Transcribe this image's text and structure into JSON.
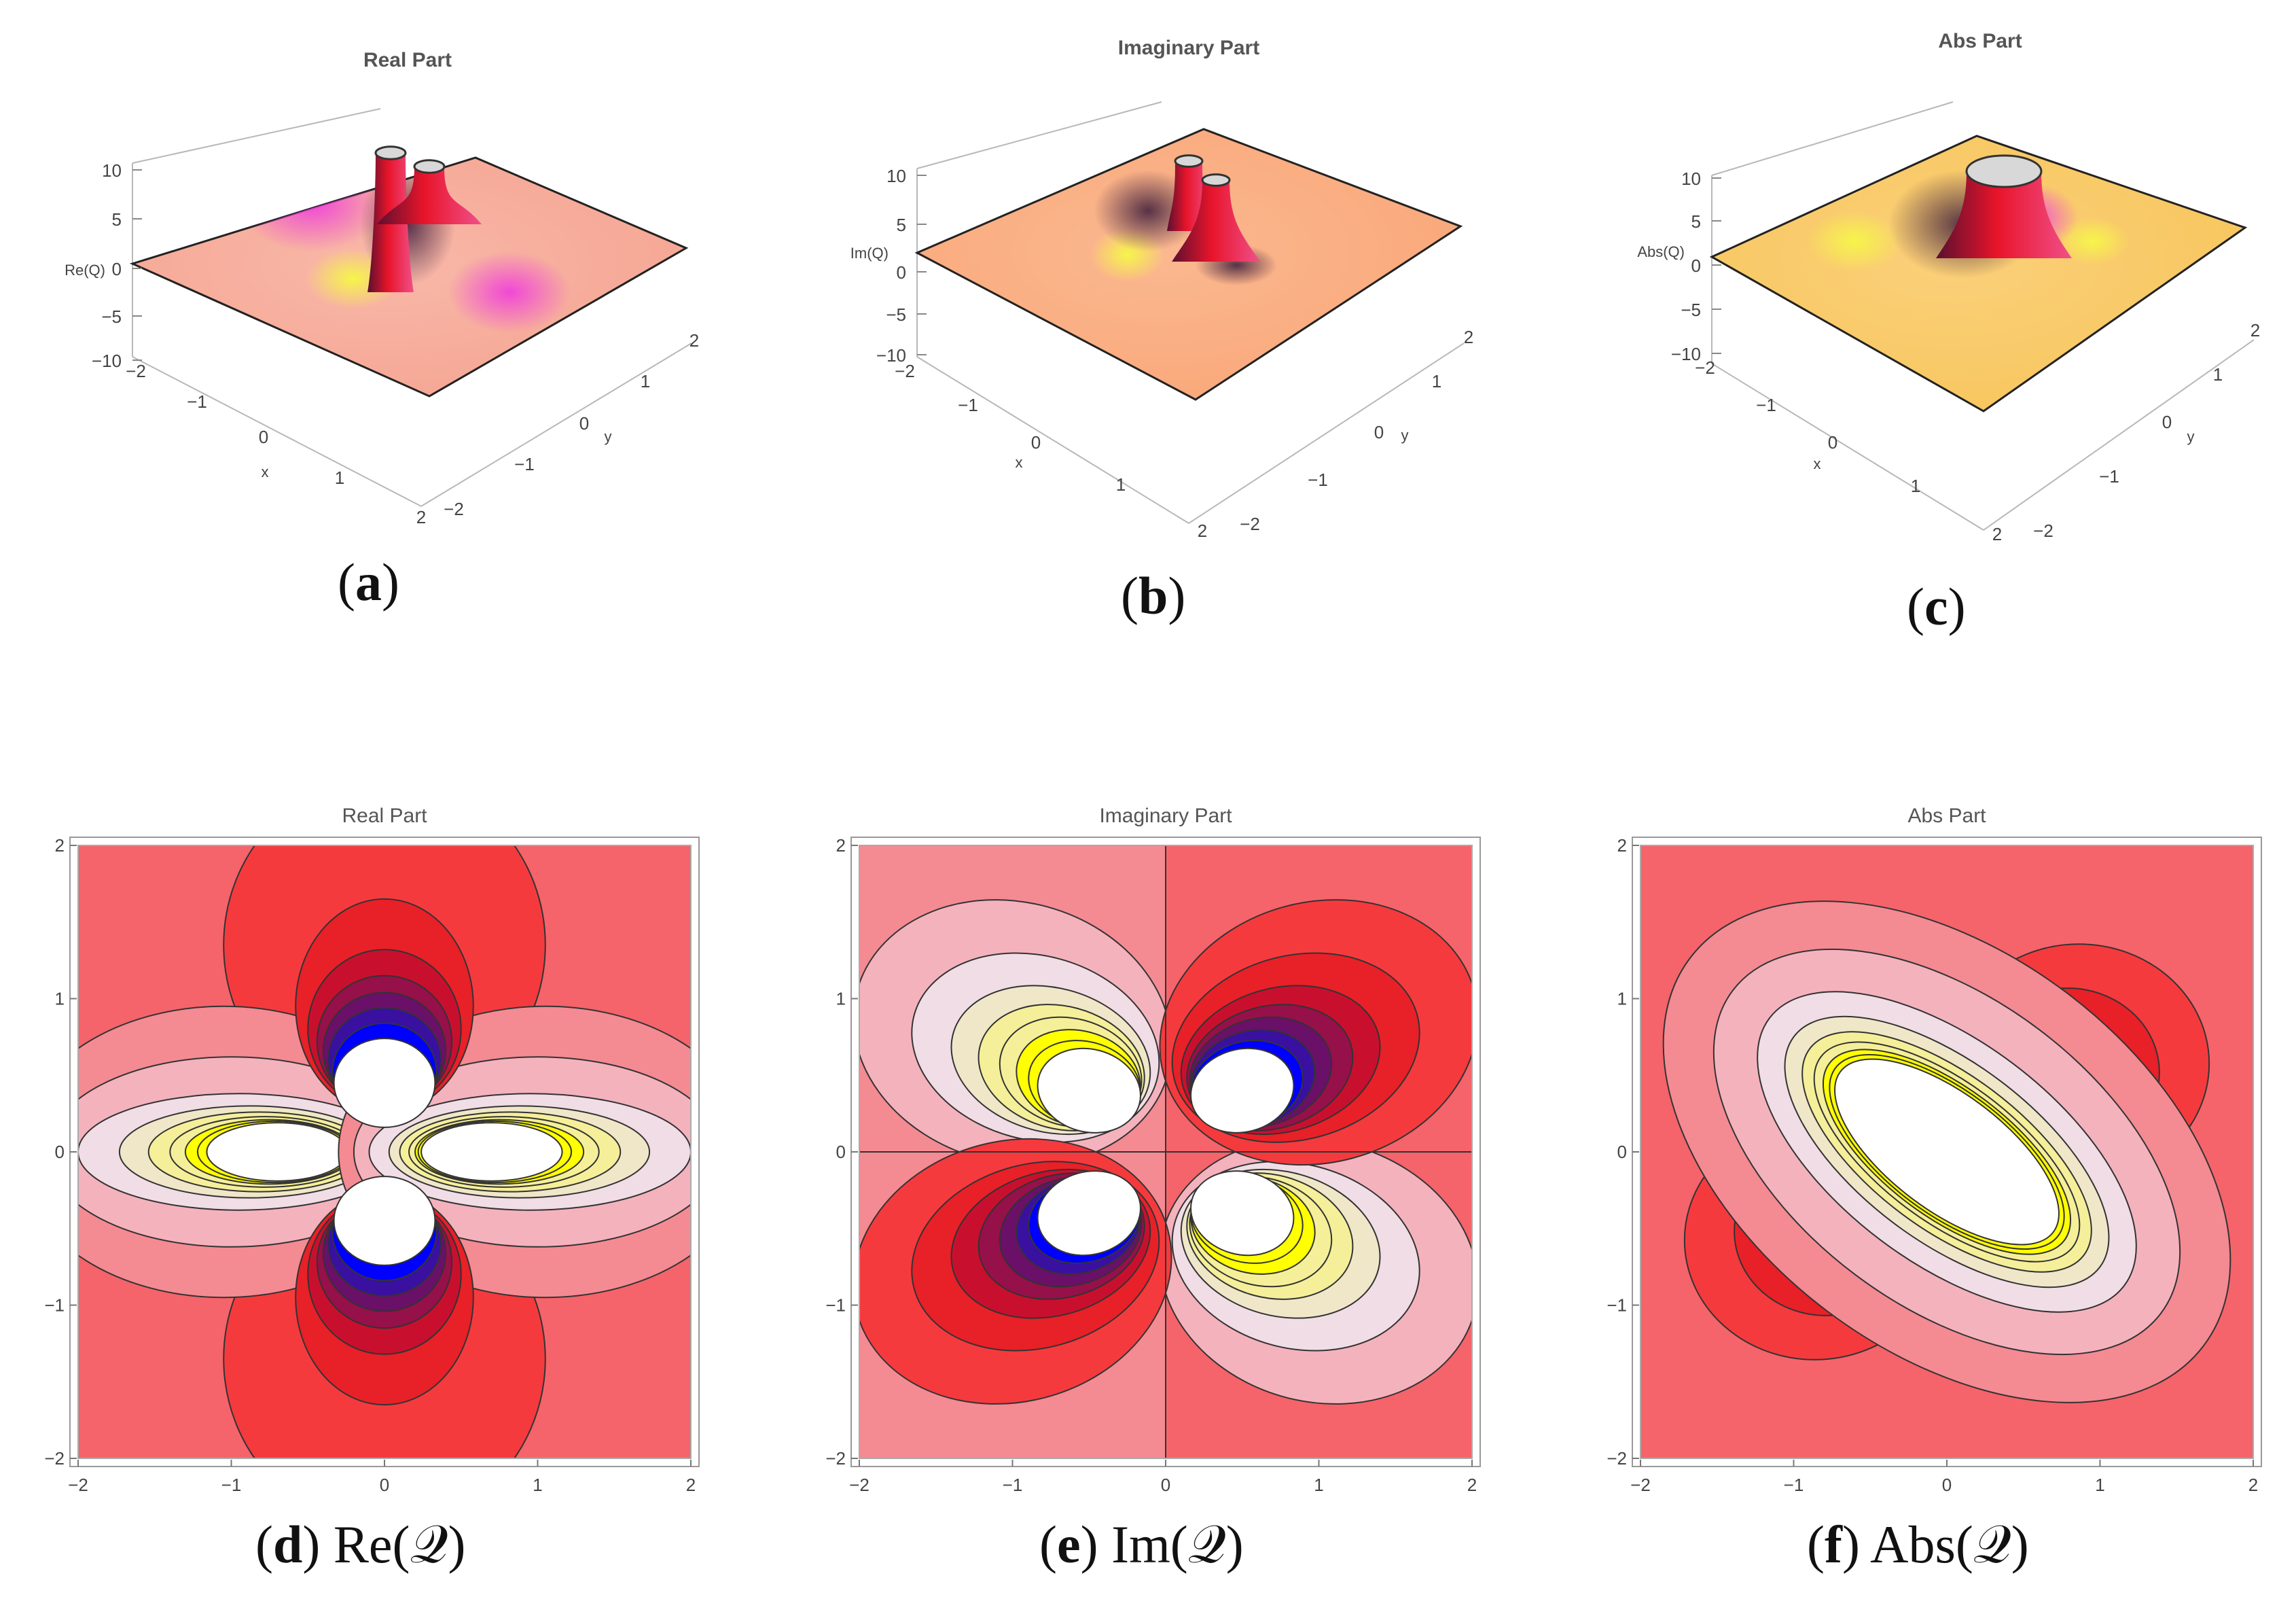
{
  "chart_data": [
    {
      "type": "surface3d",
      "panel": "a",
      "title": "Real Part",
      "zlabel": "Re(Q)",
      "xlabel": "x",
      "ylabel": "y",
      "x_ticks": [
        "−2",
        "−1",
        "0",
        "1",
        "2"
      ],
      "y_ticks": [
        "−2",
        "−1",
        "0",
        "1",
        "2"
      ],
      "z_ticks": [
        "10",
        "5",
        "0",
        "−5",
        "−10"
      ],
      "xlim": [
        -2,
        2
      ],
      "ylim": [
        -2,
        2
      ],
      "zlim": [
        -10,
        10
      ],
      "caption_label": "a"
    },
    {
      "type": "surface3d",
      "panel": "b",
      "title": "Imaginary Part",
      "zlabel": "Im(Q)",
      "xlabel": "x",
      "ylabel": "y",
      "x_ticks": [
        "−2",
        "−1",
        "0",
        "1",
        "2"
      ],
      "y_ticks": [
        "−2",
        "−1",
        "0",
        "1",
        "2"
      ],
      "z_ticks": [
        "10",
        "5",
        "0",
        "−5",
        "−10"
      ],
      "xlim": [
        -2,
        2
      ],
      "ylim": [
        -2,
        2
      ],
      "zlim": [
        -10,
        10
      ],
      "caption_label": "b"
    },
    {
      "type": "surface3d",
      "panel": "c",
      "title": "Abs Part",
      "zlabel": "Abs(Q)",
      "xlabel": "x",
      "ylabel": "y",
      "x_ticks": [
        "−2",
        "−1",
        "0",
        "1",
        "2"
      ],
      "y_ticks": [
        "−2",
        "−1",
        "0",
        "1",
        "2"
      ],
      "z_ticks": [
        "10",
        "5",
        "0",
        "−5",
        "−10"
      ],
      "xlim": [
        -2,
        2
      ],
      "ylim": [
        -2,
        2
      ],
      "zlim": [
        -10,
        10
      ],
      "caption_label": "c"
    },
    {
      "type": "contour",
      "panel": "d",
      "title": "Real Part",
      "x_ticks": [
        "−2",
        "−1",
        "0",
        "1",
        "2"
      ],
      "y_ticks": [
        "−2",
        "−1",
        "0",
        "1",
        "2"
      ],
      "xlim": [
        -2,
        2
      ],
      "ylim": [
        -2,
        2
      ],
      "caption_label": "d",
      "caption_text": "Re(𝒬)"
    },
    {
      "type": "contour",
      "panel": "e",
      "title": "Imaginary Part",
      "x_ticks": [
        "−2",
        "−1",
        "0",
        "1",
        "2"
      ],
      "y_ticks": [
        "−2",
        "−1",
        "0",
        "1",
        "2"
      ],
      "xlim": [
        -2,
        2
      ],
      "ylim": [
        -2,
        2
      ],
      "caption_label": "e",
      "caption_text": "Im(𝒬)"
    },
    {
      "type": "contour",
      "panel": "f",
      "title": "Abs Part",
      "x_ticks": [
        "−2",
        "−1",
        "0",
        "1",
        "2"
      ],
      "y_ticks": [
        "−2",
        "−1",
        "0",
        "1",
        "2"
      ],
      "xlim": [
        -2,
        2
      ],
      "ylim": [
        -2,
        2
      ],
      "caption_label": "f",
      "caption_text": "Abs(𝒬)"
    }
  ],
  "colors": {
    "contour_levels": [
      "#ffffff",
      "#ffff00",
      "#f5ef9a",
      "#f0e7c9",
      "#f1dde5",
      "#f4b2bd",
      "#f48a92",
      "#f4646a",
      "#f53a3e",
      "#e82027",
      "#c8102e",
      "#96104a",
      "#6a1068",
      "#3a10a0",
      "#0000ff"
    ],
    "surface_a": "#f6a694",
    "surface_b": "#f9a87a",
    "surface_c": "#f7c65e",
    "peak_red": "#e8142a",
    "peak_magenta": "#f03cdc",
    "highlight_yellow": "#f6f54a"
  }
}
